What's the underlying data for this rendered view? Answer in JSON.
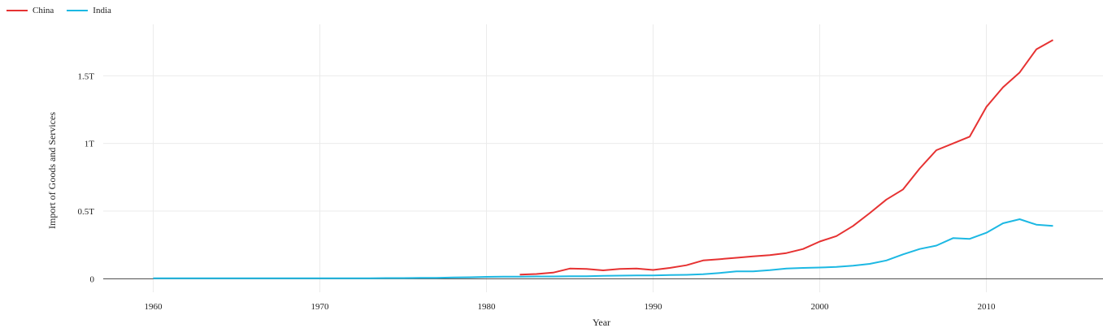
{
  "chart_data": {
    "type": "line",
    "xlabel": "Year",
    "ylabel": "Import of Goods and Services",
    "xlim": [
      1957,
      2017
    ],
    "ylim": [
      -0.1,
      1.88
    ],
    "x_ticks": [
      1960,
      1970,
      1980,
      1990,
      2000,
      2010
    ],
    "y_ticks": [
      0,
      0.5,
      1,
      1.5
    ],
    "y_tick_labels": [
      "0",
      "0.5T",
      "1T",
      "1.5T"
    ],
    "legend_position": "top-left",
    "grid": true,
    "series": [
      {
        "name": "China",
        "color": "#e63232",
        "x": [
          1982,
          1983,
          1984,
          1985,
          1986,
          1987,
          1988,
          1989,
          1990,
          1991,
          1992,
          1993,
          1994,
          1995,
          1996,
          1997,
          1998,
          1999,
          2000,
          2001,
          2002,
          2003,
          2004,
          2005,
          2006,
          2007,
          2008,
          2009,
          2010,
          2011,
          2012,
          2013,
          2014
        ],
        "y": [
          0.03,
          0.035,
          0.045,
          0.075,
          0.072,
          0.062,
          0.072,
          0.075,
          0.065,
          0.08,
          0.1,
          0.135,
          0.145,
          0.155,
          0.165,
          0.175,
          0.19,
          0.22,
          0.275,
          0.315,
          0.39,
          0.485,
          0.585,
          0.66,
          0.815,
          0.95,
          1.0,
          1.05,
          1.27,
          1.415,
          1.525,
          1.695,
          1.765
        ]
      },
      {
        "name": "India",
        "color": "#1cb8e3",
        "x": [
          1960,
          1961,
          1962,
          1963,
          1964,
          1965,
          1966,
          1967,
          1968,
          1969,
          1970,
          1971,
          1972,
          1973,
          1974,
          1975,
          1976,
          1977,
          1978,
          1979,
          1980,
          1981,
          1982,
          1983,
          1984,
          1985,
          1986,
          1987,
          1988,
          1989,
          1990,
          1991,
          1992,
          1993,
          1994,
          1995,
          1996,
          1997,
          1998,
          1999,
          2000,
          2001,
          2002,
          2003,
          2004,
          2005,
          2006,
          2007,
          2008,
          2009,
          2010,
          2011,
          2012,
          2013,
          2014
        ],
        "y": [
          0.004,
          0.004,
          0.004,
          0.004,
          0.004,
          0.004,
          0.004,
          0.004,
          0.004,
          0.004,
          0.004,
          0.004,
          0.004,
          0.004,
          0.005,
          0.005,
          0.006,
          0.007,
          0.009,
          0.011,
          0.014,
          0.015,
          0.016,
          0.017,
          0.017,
          0.018,
          0.019,
          0.021,
          0.023,
          0.024,
          0.025,
          0.027,
          0.029,
          0.033,
          0.043,
          0.055,
          0.055,
          0.063,
          0.075,
          0.08,
          0.083,
          0.087,
          0.097,
          0.11,
          0.135,
          0.18,
          0.22,
          0.245,
          0.3,
          0.295,
          0.34,
          0.41,
          0.44,
          0.4,
          0.39
        ]
      }
    ]
  }
}
